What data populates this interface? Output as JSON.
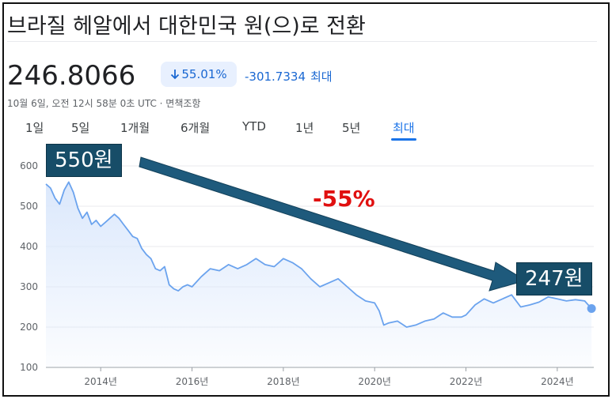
{
  "header": {
    "title": "브라질 헤알에서 대한민국 원(으)로 전환"
  },
  "quote": {
    "price": "246.8066",
    "change_pct": "55.01%",
    "change_abs": "-301.7334",
    "period": "최대",
    "timestamp": "10월 6일, 오전 12시 58분 0초 UTC · 면책조항"
  },
  "tabs": [
    {
      "label": "1일"
    },
    {
      "label": "5일"
    },
    {
      "label": "1개월"
    },
    {
      "label": "6개월"
    },
    {
      "label": "YTD"
    },
    {
      "label": "1년"
    },
    {
      "label": "5년"
    },
    {
      "label": "최대",
      "active": true
    }
  ],
  "annotations": {
    "start_label": "550원",
    "end_label": "247원",
    "change_label": "-55%"
  },
  "colors": {
    "line": "#6ba3ee",
    "fill": "#dbe8fc",
    "accent": "#1a73e8",
    "callout_bg": "#174d68",
    "arrow": "#1e5a7c",
    "pct_text": "#e01010"
  },
  "chart_data": {
    "type": "area",
    "x_ticks": [
      "2014년",
      "2016년",
      "2018년",
      "2020년",
      "2022년",
      "2024년"
    ],
    "y_ticks": [
      "100",
      "200",
      "300",
      "400",
      "500",
      "600"
    ],
    "ylim": [
      100,
      600
    ],
    "xlim": [
      2012.8,
      2024.8
    ],
    "grid": true,
    "series": [
      {
        "x": [
          2012.8,
          2012.9,
          2013.0,
          2013.1,
          2013.2,
          2013.3,
          2013.4,
          2013.5,
          2013.6,
          2013.7,
          2013.8,
          2013.9,
          2014.0,
          2014.1,
          2014.2,
          2014.3,
          2014.4,
          2014.5,
          2014.6,
          2014.7,
          2014.8,
          2014.9,
          2015.0,
          2015.1,
          2015.2,
          2015.3,
          2015.4,
          2015.5,
          2015.6,
          2015.7,
          2015.8,
          2015.9,
          2016.0,
          2016.2,
          2016.4,
          2016.6,
          2016.8,
          2017.0,
          2017.2,
          2017.4,
          2017.6,
          2017.8,
          2018.0,
          2018.2,
          2018.4,
          2018.6,
          2018.8,
          2019.0,
          2019.2,
          2019.4,
          2019.6,
          2019.8,
          2020.0,
          2020.1,
          2020.2,
          2020.3,
          2020.5,
          2020.7,
          2020.9,
          2021.1,
          2021.3,
          2021.5,
          2021.7,
          2021.9,
          2022.0,
          2022.2,
          2022.4,
          2022.6,
          2022.8,
          2023.0,
          2023.2,
          2023.4,
          2023.6,
          2023.8,
          2024.0,
          2024.2,
          2024.4,
          2024.6,
          2024.75
        ],
        "values": [
          555,
          545,
          520,
          505,
          540,
          560,
          535,
          495,
          470,
          485,
          455,
          465,
          450,
          460,
          470,
          480,
          470,
          455,
          440,
          425,
          420,
          395,
          380,
          370,
          345,
          340,
          350,
          305,
          295,
          290,
          300,
          305,
          300,
          325,
          345,
          340,
          355,
          345,
          355,
          370,
          355,
          350,
          370,
          360,
          345,
          320,
          300,
          310,
          320,
          300,
          280,
          265,
          260,
          240,
          205,
          210,
          215,
          200,
          205,
          215,
          220,
          235,
          225,
          225,
          230,
          255,
          270,
          260,
          270,
          280,
          250,
          255,
          262,
          275,
          270,
          265,
          268,
          265,
          246
        ]
      }
    ]
  }
}
